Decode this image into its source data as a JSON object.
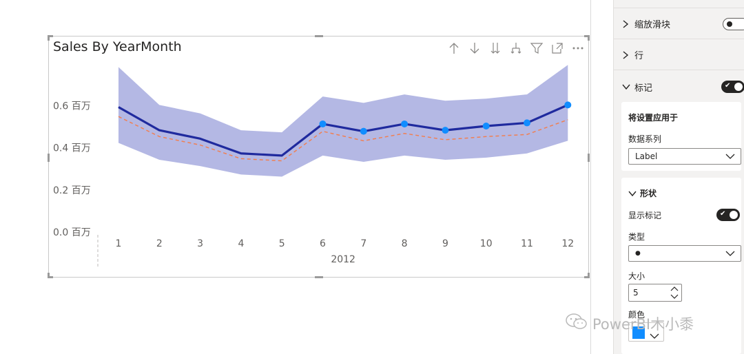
{
  "visual": {
    "title": "Sales By YearMonth",
    "toolbar": [
      {
        "icon": "arrow-up-icon"
      },
      {
        "icon": "arrow-down-icon"
      },
      {
        "icon": "double-arrow-down-icon"
      },
      {
        "icon": "expand-hierarchy-icon"
      },
      {
        "icon": "filter-icon"
      },
      {
        "icon": "focus-mode-icon"
      },
      {
        "icon": "more-options-icon"
      }
    ]
  },
  "chart_data": {
    "type": "line",
    "title": "Sales By YearMonth",
    "categories": [
      "1",
      "2",
      "3",
      "4",
      "5",
      "6",
      "7",
      "8",
      "9",
      "10",
      "11",
      "12"
    ],
    "x_group_label": "2012",
    "y_ticks": [
      "0.0 百万",
      "0.2 百万",
      "0.4 百万",
      "0.6 百万"
    ],
    "ylim": [
      0,
      0.8
    ],
    "series": [
      {
        "values": [
          0.59,
          0.48,
          0.44,
          0.37,
          0.36,
          0.51,
          0.475,
          0.51,
          0.48,
          0.5,
          0.515,
          0.6
        ],
        "color": "#1f2a9e",
        "markers": [
          false,
          false,
          false,
          false,
          false,
          true,
          true,
          true,
          true,
          true,
          true,
          true
        ]
      },
      {
        "values": [
          0.545,
          0.45,
          0.41,
          0.345,
          0.335,
          0.475,
          0.43,
          0.465,
          0.435,
          0.45,
          0.46,
          0.53
        ],
        "color": "#f07f52",
        "style": "dashed"
      }
    ],
    "band": {
      "upper": [
        0.78,
        0.6,
        0.56,
        0.48,
        0.47,
        0.64,
        0.61,
        0.65,
        0.62,
        0.63,
        0.65,
        0.79
      ],
      "lower": [
        0.42,
        0.34,
        0.31,
        0.27,
        0.26,
        0.36,
        0.33,
        0.36,
        0.34,
        0.35,
        0.37,
        0.43
      ],
      "color": "#a7acdf"
    },
    "grid": false,
    "legend": "none",
    "marker_color": "#118dff"
  },
  "pane": {
    "zoom_slider_label": "缩放滑块",
    "rows_label": "行",
    "markers_label": "标记",
    "apply_settings_label": "将设置应用于",
    "data_series_label": "数据系列",
    "data_series_value": "Label",
    "shape_label": "形状",
    "show_markers_label": "显示标记",
    "type_label": "类型",
    "type_value": "●",
    "size_label": "大小",
    "size_value": "5",
    "color_label": "颜色",
    "color_value": "#118dff"
  },
  "watermark": "PowerBI木小黍"
}
